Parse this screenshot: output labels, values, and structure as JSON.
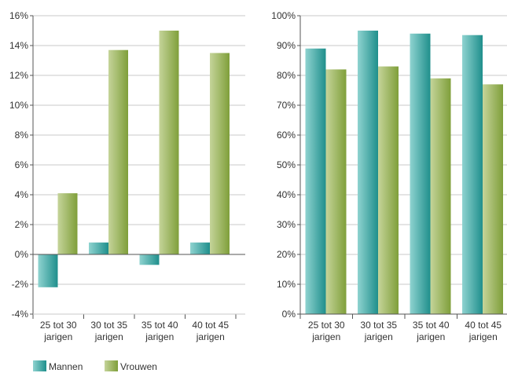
{
  "colors": {
    "mannen_dark": "#1f8f8c",
    "mannen_light": "#8fd3d0",
    "vrouwen_dark": "#7f9f3a",
    "vrouwen_light": "#c5d49a",
    "grid": "#c8c8c8",
    "axis": "#555555"
  },
  "legend": {
    "items": [
      {
        "name": "Mannen",
        "icon": "mannen-swatch"
      },
      {
        "name": "Vrouwen",
        "icon": "vrouwen-swatch"
      }
    ]
  },
  "chart_data": [
    {
      "type": "bar",
      "categories": [
        [
          "25 tot 30",
          "jarigen"
        ],
        [
          "30 tot 35",
          "jarigen"
        ],
        [
          "35 tot 40",
          "jarigen"
        ],
        [
          "40 tot 45",
          "jarigen"
        ]
      ],
      "series": [
        {
          "name": "Mannen",
          "values": [
            -2.2,
            0.8,
            -0.7,
            0.8
          ]
        },
        {
          "name": "Vrouwen",
          "values": [
            4.1,
            13.7,
            15.0,
            13.5
          ]
        }
      ],
      "ylim": [
        -4,
        16
      ],
      "yticks": [
        -4,
        -2,
        0,
        2,
        4,
        6,
        8,
        10,
        12,
        14,
        16
      ],
      "ytick_labels": [
        "-4%",
        "-2%",
        "0%",
        "2%",
        "4%",
        "6%",
        "8%",
        "10%",
        "12%",
        "14%",
        "16%"
      ],
      "grid": true,
      "legend": "bottom-left"
    },
    {
      "type": "bar",
      "categories": [
        [
          "25 tot 30",
          "jarigen"
        ],
        [
          "30 tot 35",
          "jarigen"
        ],
        [
          "35 tot 40",
          "jarigen"
        ],
        [
          "40 tot 45",
          "jarigen"
        ]
      ],
      "series": [
        {
          "name": "Mannen",
          "values": [
            89,
            95,
            94,
            93.5
          ]
        },
        {
          "name": "Vrouwen",
          "values": [
            82,
            83,
            79,
            77
          ]
        }
      ],
      "ylim": [
        0,
        100
      ],
      "yticks": [
        0,
        10,
        20,
        30,
        40,
        50,
        60,
        70,
        80,
        90,
        100
      ],
      "ytick_labels": [
        "0%",
        "10%",
        "20%",
        "30%",
        "40%",
        "50%",
        "60%",
        "70%",
        "80%",
        "90%",
        "100%"
      ],
      "grid": true,
      "legend": "bottom-left"
    }
  ]
}
